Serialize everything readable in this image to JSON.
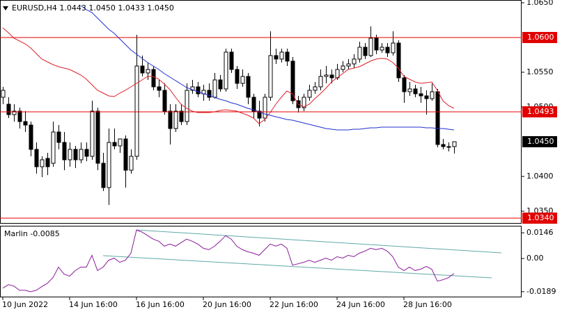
{
  "chart_data": [
    {
      "type": "candlestick",
      "title": "EURUSD,H4  1.0443 1.0450 1.0433 1.0450",
      "categories": [
        "10 Jun 2022",
        null,
        null,
        null,
        null,
        null,
        null,
        null,
        null,
        null,
        null,
        null,
        "14 Jun 16:00",
        null,
        null,
        null,
        null,
        null,
        null,
        null,
        null,
        null,
        null,
        null,
        "16 Jun 16:00",
        null,
        null,
        null,
        null,
        null,
        null,
        null,
        null,
        null,
        null,
        null,
        "20 Jun 16:00",
        null,
        null,
        null,
        null,
        null,
        null,
        null,
        null,
        null,
        null,
        null,
        "22 Jun 16:00",
        null,
        null,
        null,
        null,
        null,
        null,
        null,
        null,
        null,
        null,
        null,
        "24 Jun 16:00",
        null,
        null,
        null,
        null,
        null,
        null,
        null,
        null,
        null,
        null,
        null,
        "28 Jun 16:00",
        null,
        null,
        null,
        null,
        null,
        null,
        null,
        null,
        null
      ],
      "open": [
        1.0514,
        1.0504,
        1.0489,
        1.0494,
        1.0479,
        1.0474,
        1.0439,
        1.0414,
        1.0426,
        1.0419,
        1.0464,
        1.0449,
        1.0424,
        1.0439,
        1.0424,
        1.0439,
        1.0429,
        1.0494,
        1.0419,
        1.0384,
        1.0449,
        1.0444,
        1.0454,
        1.0409,
        1.0429,
        1.0559,
        1.0549,
        1.0554,
        1.0529,
        1.0524,
        1.0494,
        1.0469,
        1.0494,
        1.0479,
        1.0524,
        1.0529,
        1.0519,
        1.0524,
        1.0514,
        1.0539,
        1.0526,
        1.0579,
        1.0554,
        1.0534,
        1.0544,
        1.0514,
        1.0494,
        1.0484,
        1.0514,
        1.0574,
        1.0569,
        1.0579,
        1.0566,
        1.0509,
        1.0499,
        1.0514,
        1.0524,
        1.0529,
        1.0544,
        1.0546,
        1.0542,
        1.0554,
        1.0559,
        1.0562,
        1.0569,
        1.0586,
        1.0574,
        1.0599,
        1.0582,
        1.0586,
        1.0578,
        1.0592,
        1.0542,
        1.0522,
        1.0526,
        1.0519,
        1.0516,
        1.0512,
        1.0522,
        1.0446,
        1.0443,
        1.0443
      ],
      "high": [
        1.0529,
        1.0514,
        1.0504,
        1.0499,
        1.0494,
        1.0479,
        1.0449,
        1.0429,
        1.0434,
        1.0479,
        1.0474,
        1.0464,
        1.0449,
        1.0444,
        1.0449,
        1.0449,
        1.0509,
        1.0499,
        1.0434,
        1.0469,
        1.0469,
        1.0454,
        1.0459,
        1.0439,
        1.0604,
        1.0574,
        1.0564,
        1.0559,
        1.0539,
        1.0534,
        1.0504,
        1.0504,
        1.0504,
        1.0534,
        1.0539,
        1.0536,
        1.0532,
        1.0534,
        1.0549,
        1.0546,
        1.0584,
        1.0584,
        1.0559,
        1.0554,
        1.0549,
        1.0519,
        1.0509,
        1.0519,
        1.0609,
        1.0584,
        1.0584,
        1.0584,
        1.0572,
        1.0516,
        1.0519,
        1.0532,
        1.0536,
        1.0554,
        1.0559,
        1.0554,
        1.0562,
        1.0566,
        1.0569,
        1.0576,
        1.0594,
        1.0592,
        1.0616,
        1.0604,
        1.0592,
        1.0592,
        1.0609,
        1.0596,
        1.0546,
        1.0536,
        1.0532,
        1.0529,
        1.0524,
        1.0534,
        1.0526,
        1.0454,
        1.0449,
        1.045
      ],
      "low": [
        1.0504,
        1.0484,
        1.0479,
        1.0469,
        1.0464,
        1.0429,
        1.0404,
        1.0399,
        1.0402,
        1.0414,
        1.0439,
        1.0409,
        1.0414,
        1.0412,
        1.0419,
        1.0422,
        1.0424,
        1.0409,
        1.0379,
        1.0359,
        1.0439,
        1.0434,
        1.0384,
        1.0404,
        1.0424,
        1.0544,
        1.0539,
        1.0524,
        1.0514,
        1.0489,
        1.0446,
        1.0464,
        1.0474,
        1.0474,
        1.0519,
        1.0514,
        1.0509,
        1.0509,
        1.0512,
        1.0522,
        1.0522,
        1.0549,
        1.0526,
        1.0529,
        1.0504,
        1.0484,
        1.0472,
        1.0479,
        1.0509,
        1.0562,
        1.0564,
        1.0559,
        1.0504,
        1.0492,
        1.0494,
        1.0509,
        1.0519,
        1.0524,
        1.0534,
        1.0534,
        1.0539,
        1.055,
        1.0554,
        1.0556,
        1.0564,
        1.0569,
        1.0572,
        1.0576,
        1.0578,
        1.0572,
        1.0574,
        1.0536,
        1.0506,
        1.0516,
        1.0514,
        1.0506,
        1.0489,
        1.0509,
        1.0442,
        1.0439,
        1.0436,
        1.0433
      ],
      "close": [
        1.0524,
        1.0489,
        1.0494,
        1.0479,
        1.0474,
        1.0439,
        1.0414,
        1.0424,
        1.0414,
        1.0464,
        1.0449,
        1.0424,
        1.0439,
        1.0424,
        1.0439,
        1.0429,
        1.0494,
        1.0419,
        1.0384,
        1.0449,
        1.0444,
        1.0454,
        1.0409,
        1.0429,
        1.0559,
        1.0549,
        1.0554,
        1.0529,
        1.0524,
        1.0494,
        1.0469,
        1.0494,
        1.0479,
        1.0524,
        1.0529,
        1.0519,
        1.0524,
        1.0514,
        1.0539,
        1.0526,
        1.0579,
        1.0554,
        1.0534,
        1.0544,
        1.0514,
        1.0494,
        1.0484,
        1.0514,
        1.0574,
        1.0569,
        1.0579,
        1.0566,
        1.0509,
        1.0499,
        1.0514,
        1.0524,
        1.0529,
        1.0544,
        1.0546,
        1.0542,
        1.0554,
        1.0559,
        1.0562,
        1.0569,
        1.0586,
        1.0574,
        1.0599,
        1.0582,
        1.0586,
        1.0578,
        1.0592,
        1.0542,
        1.0522,
        1.0526,
        1.0519,
        1.0516,
        1.0512,
        1.0522,
        1.0446,
        1.0443,
        1.0442,
        1.045
      ],
      "up_color": "#ffffff",
      "down_color": "#000000",
      "lines": [
        {
          "color": "#e0202a",
          "values": [
            1.0614,
            1.0607,
            1.0599,
            1.0595,
            1.0591,
            1.0585,
            1.0577,
            1.0569,
            1.0565,
            1.0561,
            1.0558,
            1.0556,
            1.0554,
            1.055,
            1.0546,
            1.054,
            1.0532,
            1.0524,
            1.052,
            1.0516,
            1.0515,
            1.052,
            1.0524,
            1.0529,
            1.0534,
            1.0539,
            1.0544,
            1.0544,
            1.054,
            1.0533,
            1.0525,
            1.0514,
            1.0504,
            1.0498,
            1.0494,
            1.0492,
            1.0492,
            1.0492,
            1.0493,
            1.0495,
            1.0496,
            1.0495,
            1.0494,
            1.0491,
            1.0488,
            1.0484,
            1.0476,
            1.0482,
            1.0492,
            1.0504,
            1.0514,
            1.0523,
            1.0519,
            1.0504,
            1.05,
            1.0504,
            1.0512,
            1.0519,
            1.0527,
            1.0536,
            1.0542,
            1.0548,
            1.0554,
            1.0556,
            1.0558,
            1.0562,
            1.0566,
            1.0569,
            1.057,
            1.0569,
            1.0564,
            1.0556,
            1.0544,
            1.054,
            1.0536,
            1.0534,
            1.0535,
            1.0536,
            1.0524,
            1.0509,
            1.0502,
            1.0498
          ]
        },
        {
          "color": "#1f2fd0",
          "values": [
            null,
            null,
            null,
            null,
            null,
            null,
            null,
            null,
            null,
            null,
            null,
            null,
            null,
            null,
            1.0646,
            1.064,
            1.0636,
            1.0628,
            1.062,
            1.0612,
            1.0606,
            1.0598,
            1.059,
            1.0582,
            1.0576,
            1.057,
            1.0564,
            1.0559,
            1.0554,
            1.0548,
            1.0543,
            1.0538,
            1.0533,
            1.0528,
            1.0525,
            1.0522,
            1.0519,
            1.0517,
            1.0514,
            1.0511,
            1.0509,
            1.0506,
            1.0504,
            1.0501,
            1.0498,
            1.0496,
            1.0493,
            1.049,
            1.0488,
            1.0486,
            1.0484,
            1.0482,
            1.0481,
            1.0479,
            1.0477,
            1.0475,
            1.0473,
            1.0471,
            1.0469,
            1.0468,
            1.0467,
            1.0467,
            1.0467,
            1.0468,
            1.0468,
            1.0469,
            1.047,
            1.047,
            1.0471,
            1.0471,
            1.0471,
            1.0471,
            1.0471,
            1.0471,
            1.0471,
            1.0471,
            1.047,
            1.047,
            1.0469,
            1.0469,
            1.0468,
            1.0467
          ]
        }
      ],
      "ylim": [
        1.0332,
        1.0654
      ],
      "yticks": [
        {
          "value": 1.065,
          "label": "1.0650"
        },
        {
          "value": 1.055,
          "label": "1.0550"
        },
        {
          "value": 1.05,
          "label": "1.0500"
        },
        {
          "value": 1.04,
          "label": "1.0400"
        },
        {
          "value": 1.035,
          "label": "1.0350"
        }
      ],
      "hlines": [
        {
          "value": 1.06,
          "label": "1.0600"
        },
        {
          "value": 1.0493,
          "label": "1.0493"
        },
        {
          "value": 1.034,
          "label": "1.0340"
        }
      ],
      "hline_color": "#e00000",
      "last_price": {
        "value": 1.045,
        "label": "1.0450"
      }
    },
    {
      "type": "line",
      "title": "Marlin -0.0085",
      "color": "#8a1a9a",
      "values": [
        -0.0169,
        -0.0149,
        -0.0157,
        -0.0181,
        -0.0181,
        -0.0189,
        -0.0181,
        -0.016,
        -0.0141,
        -0.0109,
        -0.0049,
        -0.0089,
        -0.0101,
        -0.0069,
        -0.0049,
        -0.0049,
        0.0018,
        -0.0069,
        -0.0049,
        -0.001,
        0.0002,
        -0.0022,
        -0.001,
        0.003,
        0.0162,
        0.015,
        0.013,
        0.011,
        0.0098,
        0.007,
        0.0082,
        0.007,
        0.009,
        0.011,
        0.0098,
        0.0082,
        0.0058,
        0.005,
        0.007,
        0.0098,
        0.013,
        0.011,
        0.007,
        0.005,
        0.0038,
        0.003,
        0.0018,
        0.005,
        0.0082,
        0.007,
        0.0082,
        0.0058,
        -0.0038,
        -0.003,
        -0.0022,
        -0.001,
        -0.0022,
        -0.001,
        0.0002,
        -0.001,
        0.001,
        0.0002,
        0.0018,
        0.001,
        0.003,
        0.0042,
        0.0058,
        0.005,
        0.0058,
        0.0042,
        0.001,
        -0.0049,
        -0.0069,
        -0.0049,
        -0.0069,
        -0.0061,
        -0.0045,
        -0.0061,
        -0.0129,
        -0.0121,
        -0.0109,
        -0.0085
      ],
      "ylim": [
        -0.0221,
        0.0186
      ],
      "yticks": [
        {
          "value": 0.0146,
          "label": "0.0146"
        },
        {
          "value": 0,
          "label": "0.00"
        },
        {
          "value": -0.0189,
          "label": "-0.0189"
        }
      ]
    }
  ]
}
